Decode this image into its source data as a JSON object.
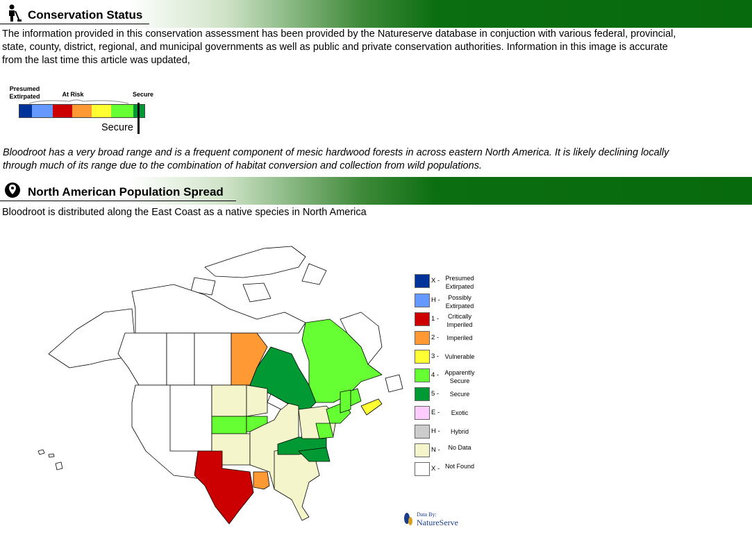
{
  "section1": {
    "title": "Conservation Status",
    "icon": "person-with-shovel-icon",
    "paragraph_lines": [
      "The information provided in this conservation assessment has been provided by the Natureserve  database in conjuction with various federal, provincial,",
      " state, county, district, regional, and  municipal governments as well as public and private conservation authorities. Information in this image is accurate",
      " from the last time this article was updated,"
    ]
  },
  "scale": {
    "label_left": "Presumed Extirpated",
    "label_mid": "At Risk",
    "label_right": "Secure",
    "marker_label": "Secure",
    "colors": [
      "#003399",
      "#6699ff",
      "#cc0000",
      "#ff9933",
      "#ffff33",
      "#66ff33",
      "#009933"
    ]
  },
  "assessment_lines": [
    "Bloodroot has a very broad range and is a frequent component of mesic hardwood forests in across eastern North America. It is likely declining locally",
    "through much of its range due to the combination of habitat conversion and collection from wild populations."
  ],
  "section2": {
    "title": "North American Population Spread",
    "icon": "location-pin-globe-icon",
    "paragraph": "Bloodroot is distributed along the East Coast as a native species in North America"
  },
  "legend": [
    {
      "code": "X -",
      "label": "Presumed Extirpated",
      "color": "#003399"
    },
    {
      "code": "H -",
      "label": "Possibly Extirpated",
      "color": "#6699ff"
    },
    {
      "code": "1 -",
      "label": "Critically Imperiled",
      "color": "#cc0000"
    },
    {
      "code": "2 -",
      "label": "Imperiled",
      "color": "#ff9933"
    },
    {
      "code": "3 -",
      "label": "Vulnerable",
      "color": "#ffff33"
    },
    {
      "code": "4 -",
      "label": "Apparently Secure",
      "color": "#66ff33"
    },
    {
      "code": "5 -",
      "label": "Secure",
      "color": "#009933"
    },
    {
      "code": "E -",
      "label": "Exotic",
      "color": "#ffccff"
    },
    {
      "code": "H -",
      "label": "Hybrid",
      "color": "#cccccc"
    },
    {
      "code": "N -",
      "label": "No Data",
      "color": "#f5f5cc"
    },
    {
      "code": "X -",
      "label": "Not Found",
      "color": "#ffffff"
    }
  ],
  "logo": {
    "line1": "Data By:",
    "line2": "NatureServe"
  }
}
